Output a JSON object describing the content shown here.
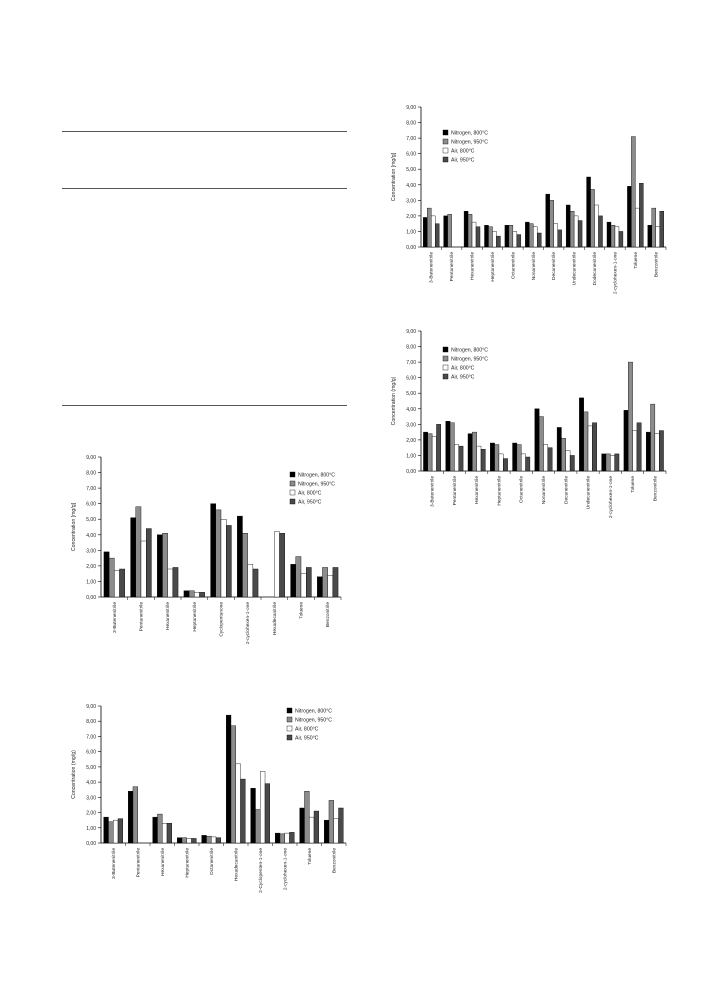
{
  "chart_data": [
    {
      "type": "bar",
      "ylabel": "Concentration [mg/g]",
      "ylim": [
        0,
        9
      ],
      "yticks": [
        "0,00",
        "1,00",
        "2,00",
        "3,00",
        "4,00",
        "5,00",
        "6,00",
        "7,00",
        "8,00",
        "9,00"
      ],
      "legend": "top-left",
      "grid": false,
      "categories": [
        "3-Butenenitrile",
        "Pentanenitrile",
        "Hexanenitrile",
        "Heptanenitrile",
        "Octanenitrile",
        "Nonanenitrile",
        "Decanenitrile",
        "Undecanenitrile",
        "Dodecanenitrile",
        "2-cyclohexen-1-one",
        "Toluene",
        "Benzonitrile"
      ],
      "series": [
        {
          "name": "Nitrogen, 800°C",
          "color": "#000000",
          "values": [
            1.9,
            2.0,
            2.3,
            1.4,
            1.4,
            1.6,
            3.4,
            2.7,
            4.5,
            1.6,
            3.9,
            1.4
          ]
        },
        {
          "name": "Nitrogen, 950°C",
          "color": "#8c8c8c",
          "values": [
            2.5,
            2.1,
            2.1,
            1.3,
            1.4,
            1.5,
            3.0,
            2.3,
            3.7,
            1.4,
            7.1,
            2.5
          ]
        },
        {
          "name": "Air, 800°C",
          "color": "#ffffff",
          "values": [
            2.0,
            0,
            1.6,
            1.0,
            1.0,
            1.3,
            1.5,
            2.0,
            2.7,
            1.3,
            2.5,
            1.3
          ]
        },
        {
          "name": "Air, 950°C",
          "color": "#4a4a4a",
          "values": [
            1.5,
            0,
            1.3,
            0.7,
            0.8,
            0.9,
            1.1,
            1.7,
            2.0,
            1.0,
            4.1,
            2.3
          ]
        }
      ]
    },
    {
      "type": "bar",
      "ylabel": "Concentration (mg/g)",
      "ylim": [
        0,
        9
      ],
      "yticks": [
        "0,00",
        "1,00",
        "2,00",
        "3,00",
        "4,00",
        "5,00",
        "6,00",
        "7,00",
        "8,00",
        "9,00"
      ],
      "legend": "top-left",
      "grid": false,
      "categories": [
        "3-Butenenitrile",
        "Pentanenitrile",
        "Hexanenitrile",
        "Heptanenitrile",
        "Octanenitrile",
        "Nonanenitrile",
        "Decanenitrile",
        "Undecanenitrile",
        "2-cyclohexen-1-one",
        "Toluene",
        "Benzonitrile"
      ],
      "series": [
        {
          "name": "Nitrogen, 800°C",
          "color": "#000000",
          "values": [
            2.5,
            3.2,
            2.4,
            1.8,
            1.8,
            4.0,
            2.8,
            4.7,
            1.1,
            3.9,
            2.5
          ]
        },
        {
          "name": "Nitrogen, 950°C",
          "color": "#8c8c8c",
          "values": [
            2.4,
            3.1,
            2.5,
            1.7,
            1.7,
            3.5,
            2.1,
            3.8,
            1.1,
            7.0,
            4.3
          ]
        },
        {
          "name": "Air, 800°C",
          "color": "#ffffff",
          "values": [
            2.2,
            1.7,
            1.6,
            1.1,
            1.1,
            1.7,
            1.3,
            2.9,
            1.0,
            2.6,
            2.4
          ]
        },
        {
          "name": "Air, 950°C",
          "color": "#4a4a4a",
          "values": [
            3.0,
            1.6,
            1.4,
            0.8,
            0.9,
            1.5,
            1.0,
            3.1,
            1.1,
            3.1,
            2.6
          ]
        }
      ]
    },
    {
      "type": "bar",
      "ylabel": "Concentration [mg/g]",
      "ylim": [
        0,
        9
      ],
      "yticks": [
        "0,00",
        "1,00",
        "2,00",
        "3,00",
        "4,00",
        "5,00",
        "6,00",
        "7,00",
        "8,00",
        "9,00"
      ],
      "legend": "top-right",
      "grid": false,
      "categories": [
        "3-Butenenitrile",
        "Pentanenitrile",
        "Hexanenitrile",
        "Heptanenitrile",
        "Cyclopentanone",
        "2-cyclohexen-1-one",
        "Hexadecanitrile",
        "Toluene",
        "Benzonitrile"
      ],
      "series": [
        {
          "name": "Nitrogen, 800°C",
          "color": "#000000",
          "values": [
            2.9,
            5.1,
            4.0,
            0.4,
            6.0,
            5.2,
            0,
            2.1,
            1.3
          ]
        },
        {
          "name": "Nitrogen, 950°C",
          "color": "#8c8c8c",
          "values": [
            2.5,
            5.8,
            4.1,
            0.4,
            5.6,
            4.1,
            0,
            2.6,
            1.9
          ]
        },
        {
          "name": "Air, 800°C",
          "color": "#ffffff",
          "values": [
            1.7,
            3.6,
            1.8,
            0.3,
            5.0,
            2.1,
            4.2,
            1.5,
            1.4
          ]
        },
        {
          "name": "Air, 950°C",
          "color": "#4a4a4a",
          "values": [
            1.8,
            4.4,
            1.9,
            0.3,
            4.6,
            1.8,
            4.1,
            1.9,
            1.9
          ]
        }
      ]
    },
    {
      "type": "bar",
      "ylabel": "Concentration (mg/g)",
      "ylim": [
        0,
        9
      ],
      "yticks": [
        "0,00",
        "1,00",
        "2,00",
        "3,00",
        "4,00",
        "5,00",
        "6,00",
        "7,00",
        "8,00",
        "9,00"
      ],
      "legend": "top-right",
      "grid": false,
      "categories": [
        "3-Butenenitrile",
        "Pentanenitrile",
        "Hexanenitrile",
        "Heptanenitrile",
        "Octanenitrile",
        "Hexadecanitrile",
        "2-Cyclopenten-1-one",
        "2-cyclohexen-1-one",
        "Toluene",
        "Benzonitrile"
      ],
      "series": [
        {
          "name": "Nitrogen, 800°C",
          "color": "#000000",
          "values": [
            1.7,
            3.4,
            1.7,
            0.35,
            0.5,
            8.4,
            3.6,
            0.65,
            2.3,
            1.5
          ]
        },
        {
          "name": "Nitrogen, 950°C",
          "color": "#8c8c8c",
          "values": [
            1.4,
            3.7,
            1.9,
            0.35,
            0.45,
            7.7,
            2.2,
            0.6,
            3.4,
            2.8
          ]
        },
        {
          "name": "Air, 800°C",
          "color": "#ffffff",
          "values": [
            1.5,
            0,
            1.3,
            0.3,
            0.4,
            5.2,
            4.7,
            0.65,
            1.7,
            1.6
          ]
        },
        {
          "name": "Air, 950°C",
          "color": "#4a4a4a",
          "values": [
            1.6,
            0,
            1.3,
            0.3,
            0.35,
            4.2,
            3.9,
            0.7,
            2.1,
            2.3
          ]
        }
      ]
    }
  ]
}
